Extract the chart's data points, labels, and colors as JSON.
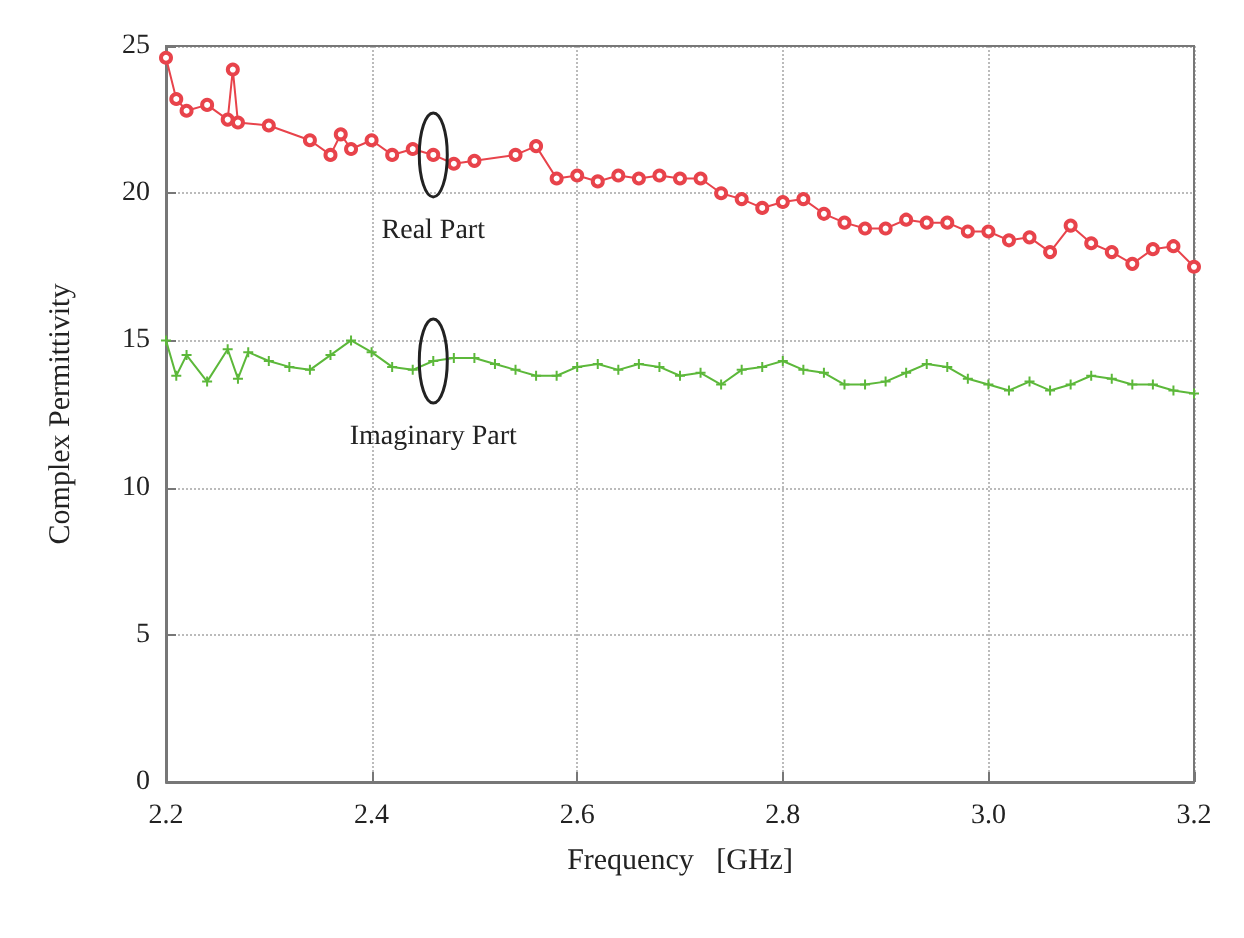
{
  "chart_data": {
    "type": "line",
    "xlabel": "Frequency   [GHz]",
    "ylabel": "Complex Permittivity",
    "xlim": [
      2.2,
      3.2
    ],
    "xticks": [
      {
        "value": 2.2,
        "label": "2.2"
      },
      {
        "value": 2.4,
        "label": "2.4"
      },
      {
        "value": 2.6,
        "label": "2.6"
      },
      {
        "value": 2.8,
        "label": "2.8"
      },
      {
        "value": 3.0,
        "label": "3.0"
      },
      {
        "value": 3.2,
        "label": "3.2"
      }
    ],
    "ylim": [
      0,
      25
    ],
    "yticks": [
      0,
      5,
      10,
      15,
      20,
      25
    ],
    "grid": true,
    "line_style": "solid",
    "series": [
      {
        "color": "#e8434b",
        "marker": "circle",
        "x": [
          2.2,
          2.21,
          2.22,
          2.24,
          2.26,
          2.265,
          2.27,
          2.3,
          2.34,
          2.36,
          2.37,
          2.38,
          2.4,
          2.42,
          2.44,
          2.46,
          2.48,
          2.5,
          2.54,
          2.56,
          2.58,
          2.6,
          2.62,
          2.64,
          2.66,
          2.68,
          2.7,
          2.72,
          2.74,
          2.76,
          2.78,
          2.8,
          2.82,
          2.84,
          2.86,
          2.88,
          2.9,
          2.92,
          2.94,
          2.96,
          2.98,
          3.0,
          3.02,
          3.04,
          3.06,
          3.08,
          3.1,
          3.12,
          3.14,
          3.16,
          3.18,
          3.2
        ],
        "values": [
          24.6,
          23.2,
          22.8,
          23.0,
          22.5,
          24.2,
          22.4,
          22.3,
          21.8,
          21.3,
          22.0,
          21.5,
          21.8,
          21.3,
          21.5,
          21.3,
          21.0,
          21.1,
          21.3,
          21.6,
          20.5,
          20.6,
          20.4,
          20.6,
          20.5,
          20.6,
          20.5,
          20.5,
          20.0,
          19.8,
          19.5,
          19.7,
          19.8,
          19.3,
          19.0,
          18.8,
          18.8,
          19.1,
          19.0,
          19.0,
          18.7,
          18.7,
          18.4,
          18.5,
          18.0,
          18.9,
          18.3,
          18.0,
          17.6,
          18.1,
          18.2,
          17.5
        ]
      },
      {
        "color": "#5cb83a",
        "marker": "cross",
        "x": [
          2.2,
          2.21,
          2.22,
          2.24,
          2.26,
          2.27,
          2.28,
          2.3,
          2.32,
          2.34,
          2.36,
          2.38,
          2.4,
          2.42,
          2.44,
          2.46,
          2.48,
          2.5,
          2.52,
          2.54,
          2.56,
          2.58,
          2.6,
          2.62,
          2.64,
          2.66,
          2.68,
          2.7,
          2.72,
          2.74,
          2.76,
          2.78,
          2.8,
          2.82,
          2.84,
          2.86,
          2.88,
          2.9,
          2.92,
          2.94,
          2.96,
          2.98,
          3.0,
          3.02,
          3.04,
          3.06,
          3.08,
          3.1,
          3.12,
          3.14,
          3.16,
          3.18,
          3.2
        ],
        "values": [
          15.0,
          13.8,
          14.5,
          13.6,
          14.7,
          13.7,
          14.6,
          14.3,
          14.1,
          14.0,
          14.5,
          15.0,
          14.6,
          14.1,
          14.0,
          14.3,
          14.4,
          14.4,
          14.2,
          14.0,
          13.8,
          13.8,
          14.1,
          14.2,
          14.0,
          14.2,
          14.1,
          13.8,
          13.9,
          13.5,
          14.0,
          14.1,
          14.3,
          14.0,
          13.9,
          13.5,
          13.5,
          13.6,
          13.9,
          14.2,
          14.1,
          13.7,
          13.5,
          13.3,
          13.6,
          13.3,
          13.5,
          13.8,
          13.7,
          13.5,
          13.5,
          13.3,
          13.2
        ]
      }
    ],
    "annotations": [
      {
        "text": "Real Part",
        "x": 2.46,
        "y": 21.3
      },
      {
        "text": "Imaginary Part",
        "x": 2.46,
        "y": 14.3
      }
    ]
  }
}
